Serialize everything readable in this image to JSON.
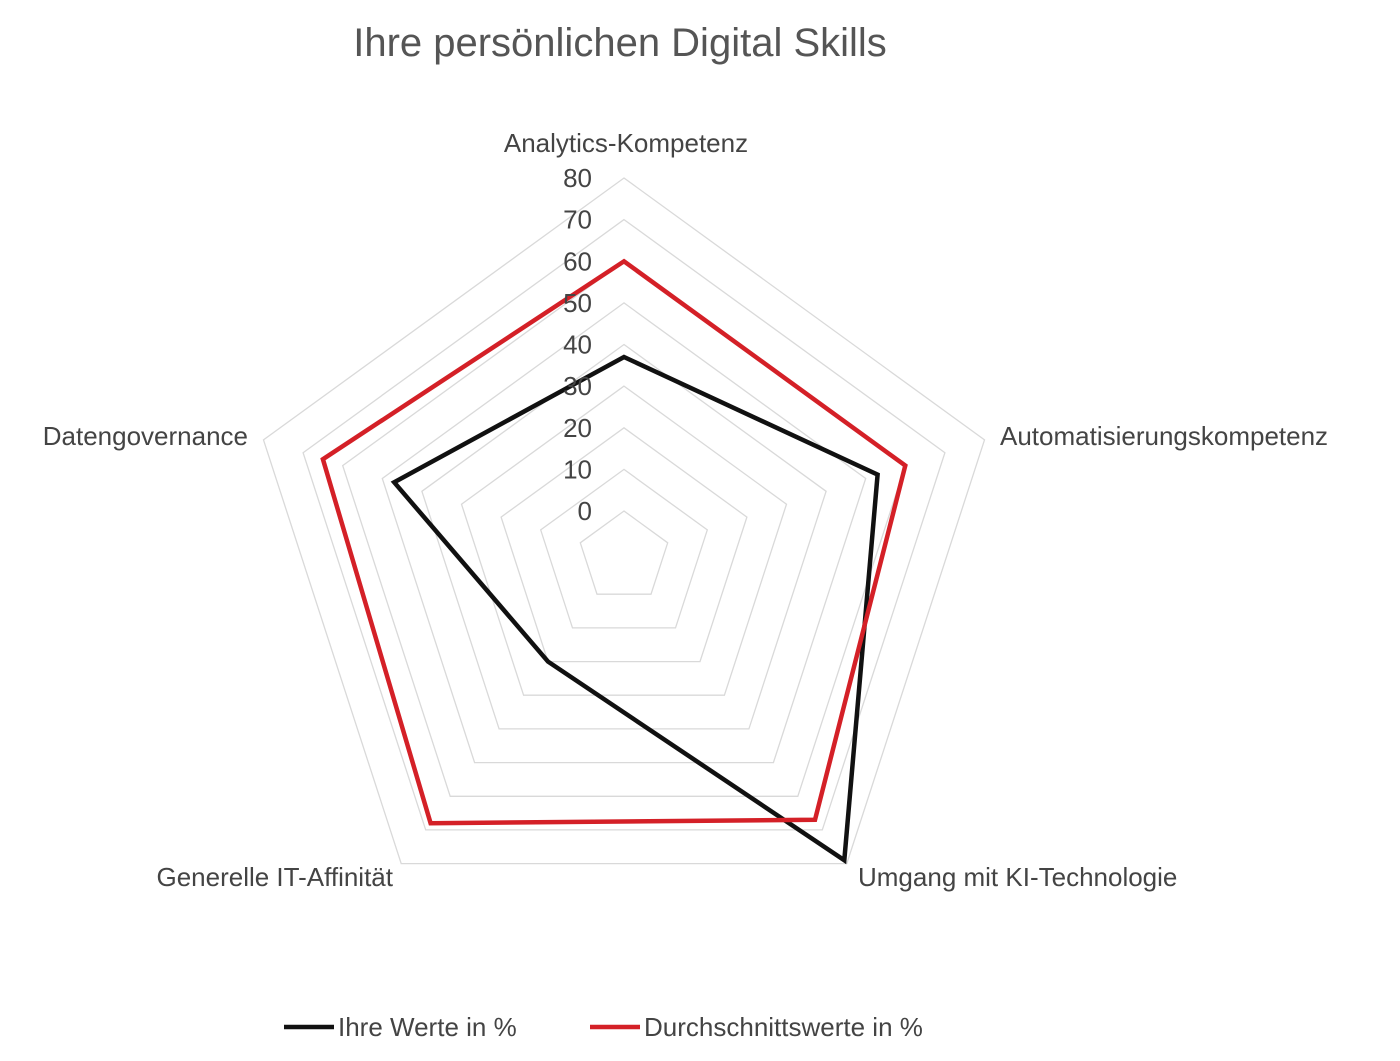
{
  "chart_data": {
    "type": "radar",
    "title": "Ihre persönlichen Digital Skills",
    "categories": [
      "Analytics-Kompetenz",
      "Automatisierungskompetenz",
      "Umgang mit KI-Technologie",
      "Generelle IT-Affinität",
      "Datengovernance"
    ],
    "r_ticks": [
      0,
      10,
      20,
      30,
      40,
      50,
      60,
      70,
      80
    ],
    "r_range": [
      0,
      80
    ],
    "series": [
      {
        "name": "Ihre Werte in %",
        "color": "#111111",
        "values": [
          37,
          53,
          79,
          20,
          47
        ]
      },
      {
        "name": "Durchschnittswerte in %",
        "color": "#d42027",
        "values": [
          60,
          60,
          67,
          68,
          65
        ]
      }
    ],
    "legend_position": "bottom",
    "grid": true,
    "grid_color": "#d9d9d9"
  }
}
